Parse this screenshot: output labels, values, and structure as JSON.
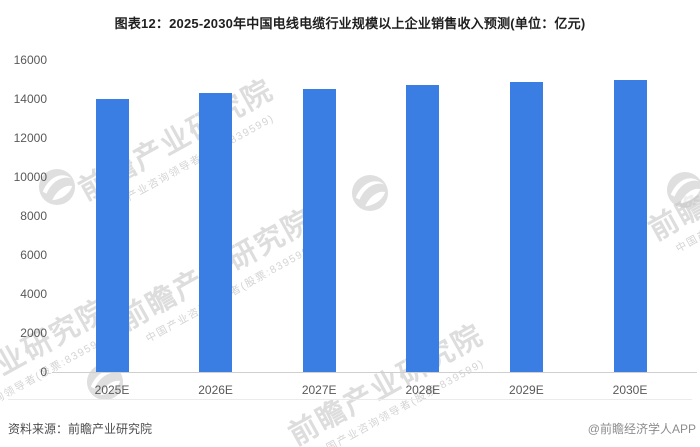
{
  "chart_data": {
    "type": "bar",
    "title": "图表12：2025-2030年中国电线电缆行业规模以上企业销售收入预测(单位：亿元)",
    "unit": "亿元",
    "categories": [
      "2025E",
      "2026E",
      "2027E",
      "2028E",
      "2029E",
      "2030E"
    ],
    "values": [
      14000,
      14300,
      14500,
      14700,
      14850,
      15000
    ],
    "ylim": [
      0,
      16000
    ],
    "ytick_step": 2000,
    "grid": false,
    "legend_position": "none",
    "bar_color": "#3b7ee3",
    "axis_line_color": "#cfcfcf",
    "tick_label_color": "#595959"
  },
  "footer": {
    "source": "资料来源：前瞻产业研究院",
    "credit": "@前瞻经济学人APP"
  },
  "watermark": {
    "logo": "qianzhan-swoosh-logo",
    "text": "前瞻产业研究院",
    "subtext": "中国产业咨询领导者(股票:839599)"
  }
}
